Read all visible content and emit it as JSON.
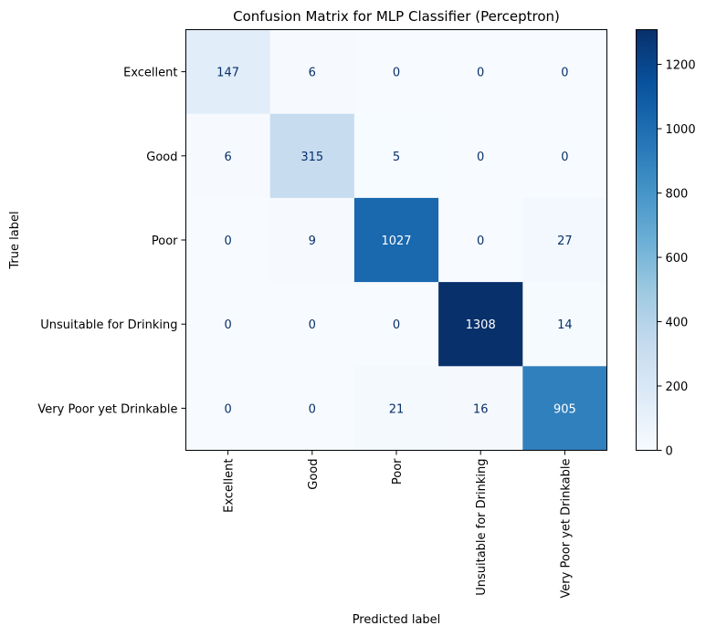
{
  "chart_data": {
    "type": "heatmap",
    "title": "Confusion Matrix for MLP Classifier (Perceptron)",
    "xlabel": "Predicted label",
    "ylabel": "True label",
    "categories": [
      "Excellent",
      "Good",
      "Poor",
      "Unsuitable for Drinking",
      "Very Poor yet Drinkable"
    ],
    "matrix": [
      [
        147,
        6,
        0,
        0,
        0
      ],
      [
        6,
        315,
        5,
        0,
        0
      ],
      [
        0,
        9,
        1027,
        0,
        27
      ],
      [
        0,
        0,
        0,
        1308,
        14
      ],
      [
        0,
        0,
        21,
        16,
        905
      ]
    ],
    "colormap": "Blues",
    "colormap_stops": [
      "#f7fbff",
      "#deebf7",
      "#c6dbef",
      "#9ecae1",
      "#6baed6",
      "#4292c6",
      "#2171b5",
      "#08519c",
      "#08306b"
    ],
    "colorbar": {
      "vmin": 0,
      "vmax": 1308,
      "ticks": [
        0,
        200,
        400,
        600,
        800,
        1000,
        1200
      ]
    }
  }
}
